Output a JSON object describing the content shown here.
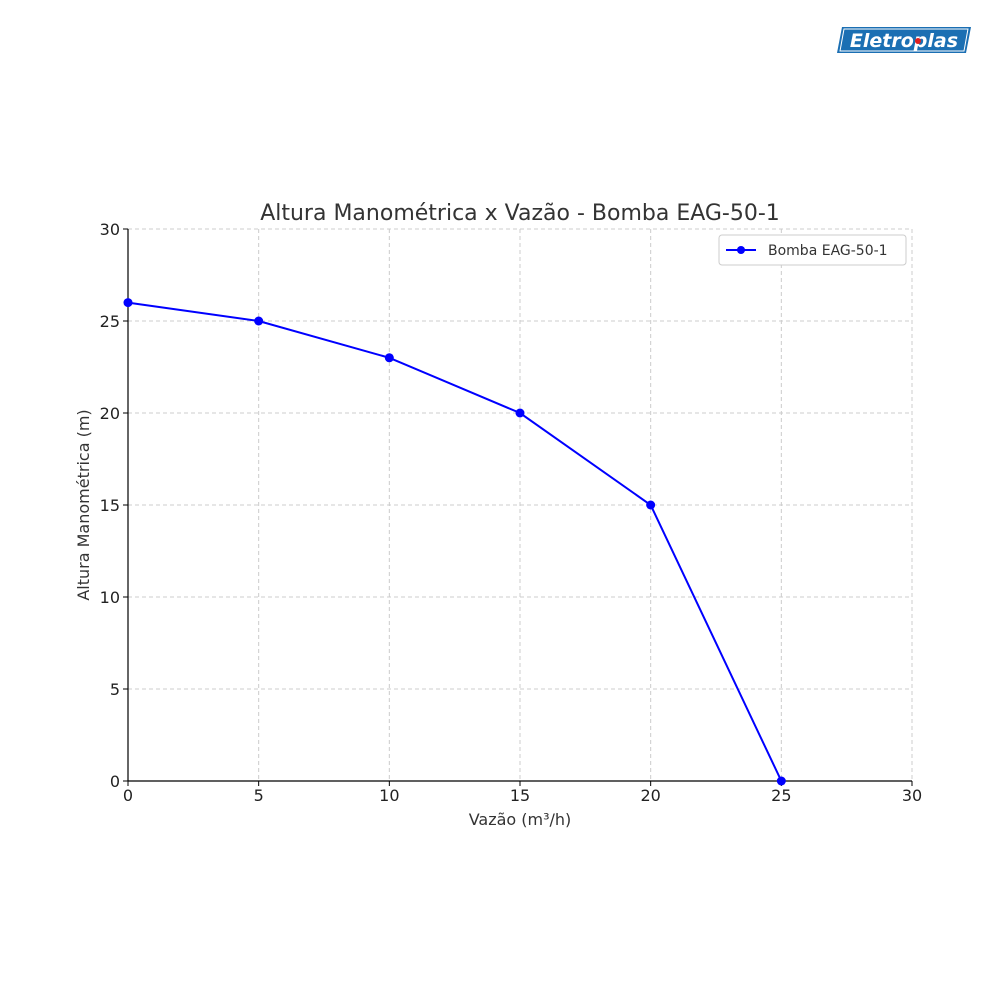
{
  "brand": {
    "logo_text": "Eletroplas",
    "color": "#1b6fb3"
  },
  "chart_data": {
    "type": "line",
    "title": "Altura Manométrica x Vazão - Bomba EAG-50-1",
    "xlabel": "Vazão (m³/h)",
    "ylabel": "Altura Manométrica (m)",
    "xlim": [
      0,
      30
    ],
    "ylim": [
      0,
      30
    ],
    "xticks": [
      0,
      5,
      10,
      15,
      20,
      25,
      30
    ],
    "yticks": [
      0,
      5,
      10,
      15,
      20,
      25,
      30
    ],
    "grid": true,
    "legend_position": "top-right",
    "series": [
      {
        "name": "Bomba EAG-50-1",
        "color": "#0000ff",
        "marker": "circle",
        "x": [
          0,
          5,
          10,
          15,
          20,
          25
        ],
        "y": [
          26,
          25,
          23,
          20,
          15,
          0
        ]
      }
    ]
  }
}
